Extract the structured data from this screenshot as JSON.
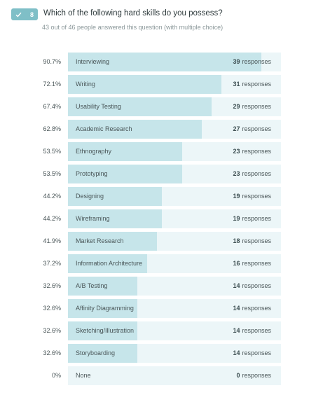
{
  "question": {
    "number": "8",
    "title": "Which of the following hard skills do you possess?",
    "subtitle": "43 out of 46 people answered this question (with multiple choice)",
    "check_icon": "check-icon"
  },
  "colors": {
    "badge": "#7fbfc7",
    "bar_fill": "#c6e5ea",
    "bar_track": "#ecf6f8"
  },
  "responses_word": "responses",
  "chart_data": {
    "type": "bar",
    "orientation": "horizontal",
    "xlim": [
      0,
      43
    ],
    "rows": [
      {
        "label": "Interviewing",
        "percent": "90.7%",
        "count": 39
      },
      {
        "label": "Writing",
        "percent": "72.1%",
        "count": 31
      },
      {
        "label": "Usability Testing",
        "percent": "67.4%",
        "count": 29
      },
      {
        "label": "Academic Research",
        "percent": "62.8%",
        "count": 27
      },
      {
        "label": "Ethnography",
        "percent": "53.5%",
        "count": 23
      },
      {
        "label": "Prototyping",
        "percent": "53.5%",
        "count": 23
      },
      {
        "label": "Designing",
        "percent": "44.2%",
        "count": 19
      },
      {
        "label": "Wireframing",
        "percent": "44.2%",
        "count": 19
      },
      {
        "label": "Market Research",
        "percent": "41.9%",
        "count": 18
      },
      {
        "label": "Information Architecture",
        "percent": "37.2%",
        "count": 16
      },
      {
        "label": "A/B Testing",
        "percent": "32.6%",
        "count": 14
      },
      {
        "label": "Affinity Diagramming",
        "percent": "32.6%",
        "count": 14
      },
      {
        "label": "Sketching/Illustration",
        "percent": "32.6%",
        "count": 14
      },
      {
        "label": "Storyboarding",
        "percent": "32.6%",
        "count": 14
      },
      {
        "label": "None",
        "percent": "0%",
        "count": 0
      }
    ]
  }
}
